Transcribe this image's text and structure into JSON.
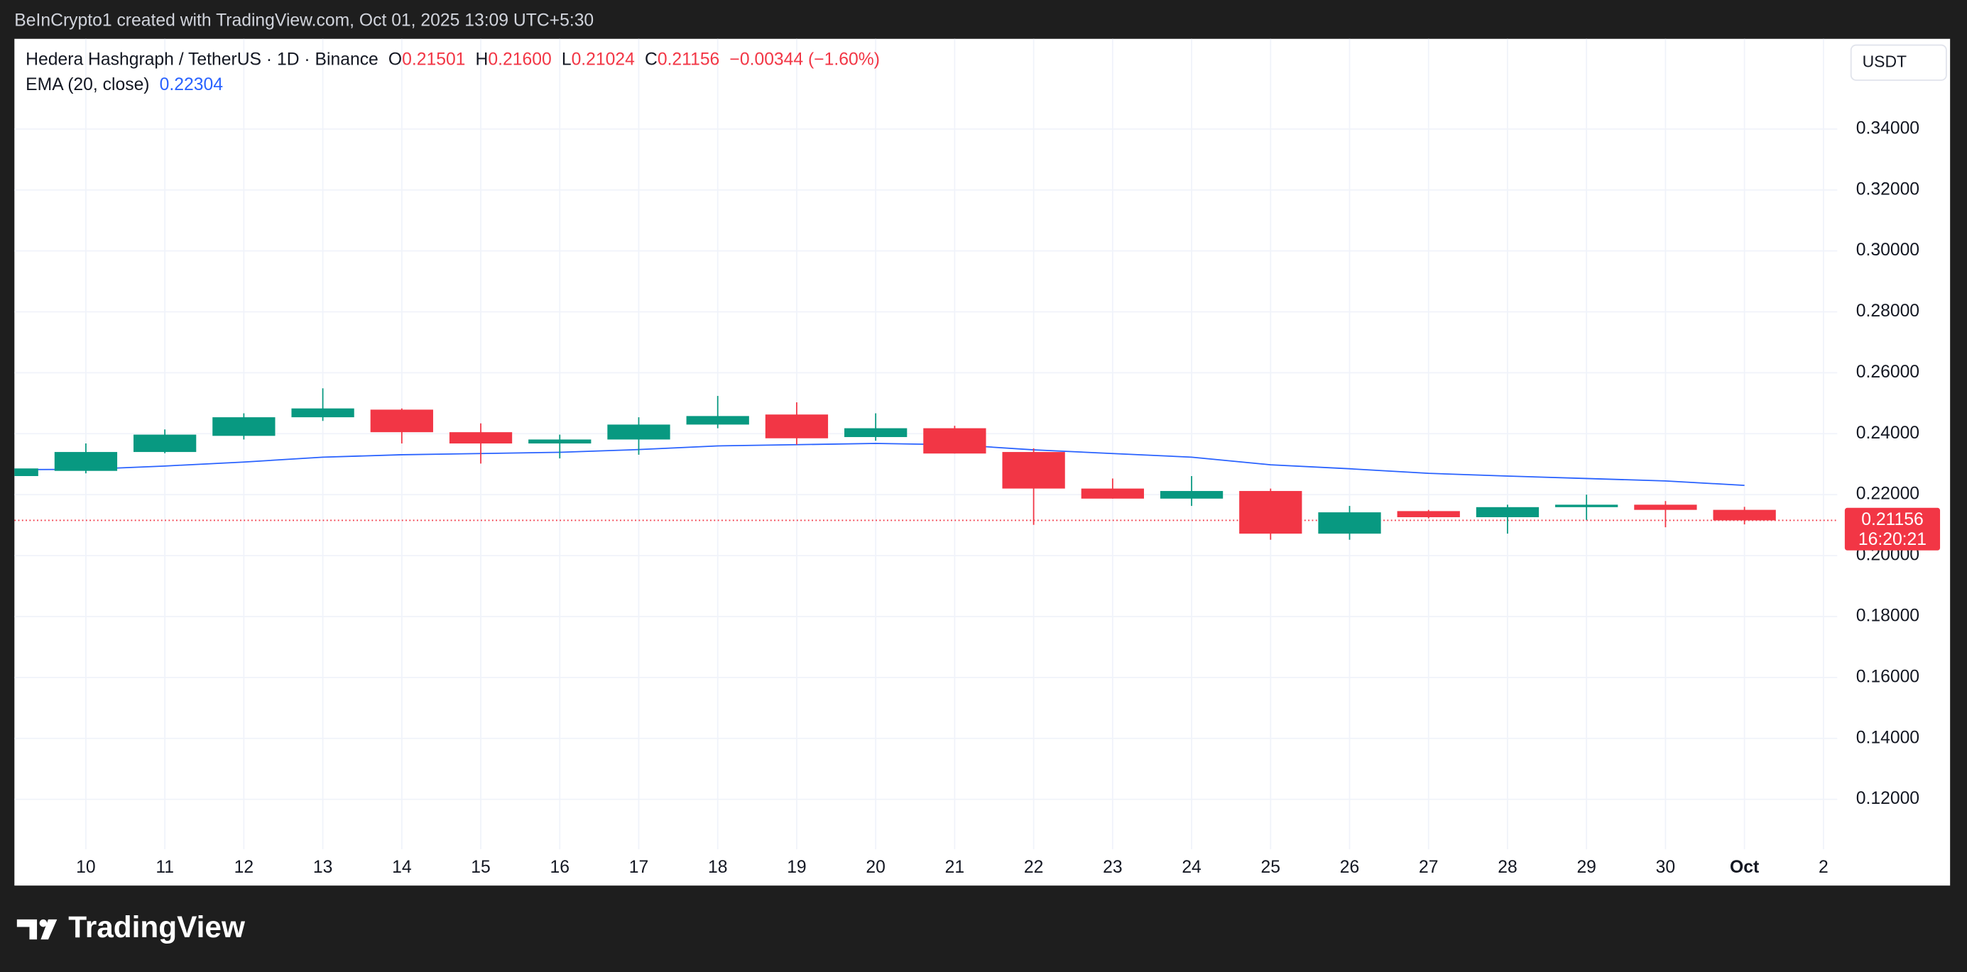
{
  "chart_data": {
    "type": "candlestick",
    "watermark": "BeInCrypto1 created with TradingView.com, Oct 01, 2025 13:09 UTC+5:30",
    "title": "Hedera Hashgraph / TetherUS · 1D · Binance",
    "legend": {
      "open": {
        "prefix": "O",
        "value": 0.21501,
        "label": "0.21501"
      },
      "high": {
        "prefix": "H",
        "value": 0.216,
        "label": "0.21600"
      },
      "low": {
        "prefix": "L",
        "value": 0.21024,
        "label": "0.21024"
      },
      "close": {
        "prefix": "C",
        "value": 0.21156,
        "label": "0.21156"
      },
      "change": {
        "value": -0.00344,
        "label": "−0.00344 (−1.60%)"
      }
    },
    "categories": [
      null,
      "10",
      "11",
      "12",
      "13",
      "14",
      "15",
      "16",
      "17",
      "18",
      "19",
      "20",
      "21",
      "22",
      "23",
      "24",
      "25",
      "26",
      "27",
      "28",
      "29",
      "30",
      "Oct",
      "2"
    ],
    "open": [
      0.2261,
      0.2278,
      0.234,
      0.2393,
      0.2454,
      0.2479,
      0.2405,
      0.2368,
      0.2381,
      0.243,
      0.2463,
      0.2389,
      0.2418,
      0.234,
      0.222,
      0.2187,
      0.2212,
      0.2072,
      0.2146,
      0.2126,
      0.2159,
      0.2167,
      0.21501,
      null
    ],
    "high": [
      0.2288,
      0.2368,
      0.2414,
      0.2467,
      0.2549,
      0.2483,
      0.2434,
      0.2397,
      0.2454,
      0.2524,
      0.2503,
      0.2467,
      0.2426,
      0.2352,
      0.2253,
      0.2261,
      0.222,
      0.2163,
      0.215,
      0.2167,
      0.22,
      0.2179,
      0.216,
      null
    ],
    "low": [
      0.2259,
      0.227,
      0.2336,
      0.2381,
      0.2442,
      0.2368,
      0.2302,
      0.2319,
      0.2331,
      0.2418,
      0.2364,
      0.2377,
      0.2335,
      0.2101,
      0.2187,
      0.2163,
      0.2052,
      0.2052,
      0.2122,
      0.2072,
      0.2117,
      0.2093,
      0.21024,
      null
    ],
    "close": [
      0.2286,
      0.234,
      0.2397,
      0.2454,
      0.2483,
      0.2405,
      0.2368,
      0.2381,
      0.243,
      0.2458,
      0.2385,
      0.2418,
      0.2335,
      0.222,
      0.2187,
      0.2212,
      0.2072,
      0.2142,
      0.2126,
      0.2159,
      0.2167,
      0.215,
      0.21156,
      null
    ],
    "up_color": "#089981",
    "down_color": "#f23645",
    "ema": {
      "name": "EMA (20, close)",
      "color": "#2962ff",
      "values": [
        0.2282,
        0.2283,
        0.2294,
        0.2307,
        0.2323,
        0.2331,
        0.2335,
        0.2339,
        0.2348,
        0.236,
        0.2364,
        0.2368,
        0.2364,
        0.2347,
        0.2335,
        0.2323,
        0.2298,
        0.2285,
        0.227,
        0.2261,
        0.2253,
        0.2245,
        0.22304,
        null
      ]
    },
    "ylim": [
      0.0917,
      0.3696
    ],
    "yticks": [
      {
        "value": 0.12,
        "label": "0.12000"
      },
      {
        "value": 0.14,
        "label": "0.14000"
      },
      {
        "value": 0.16,
        "label": "0.16000"
      },
      {
        "value": 0.18,
        "label": "0.18000"
      },
      {
        "value": 0.2,
        "label": "0.20000"
      },
      {
        "value": 0.22,
        "label": "0.22000"
      },
      {
        "value": 0.24,
        "label": "0.24000"
      },
      {
        "value": 0.26,
        "label": "0.26000"
      },
      {
        "value": 0.28,
        "label": "0.28000"
      },
      {
        "value": 0.3,
        "label": "0.30000"
      },
      {
        "value": 0.32,
        "label": "0.32000"
      },
      {
        "value": 0.34,
        "label": "0.34000"
      }
    ],
    "grid": true,
    "last_price": {
      "value": 0.21156,
      "label": "0.21156",
      "countdown": "16:20:21"
    },
    "currency": "USDT",
    "brand": "TradingView"
  }
}
